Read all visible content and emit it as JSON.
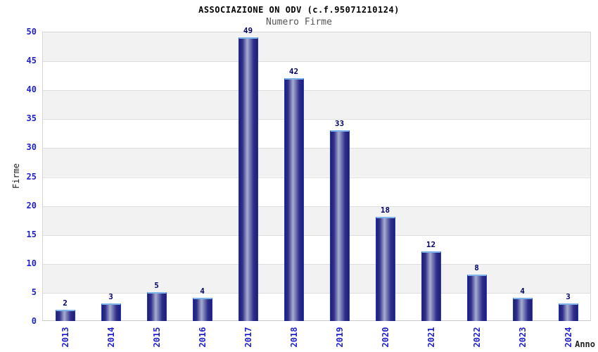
{
  "header": {
    "title": "ASSOCIAZIONE ON ODV (c.f.95071210124)",
    "subtitle": "Numero Firme"
  },
  "chart_data": {
    "type": "bar",
    "title": "ASSOCIAZIONE ON ODV (c.f.95071210124)",
    "subtitle": "Numero Firme",
    "xlabel": "Anno",
    "ylabel": "Firme",
    "categories": [
      "2013",
      "2014",
      "2015",
      "2016",
      "2017",
      "2018",
      "2019",
      "2020",
      "2021",
      "2022",
      "2023",
      "2024"
    ],
    "values": [
      2,
      3,
      5,
      4,
      49,
      42,
      33,
      18,
      12,
      8,
      4,
      3
    ],
    "ylim": [
      0,
      50
    ],
    "yticks": [
      0,
      5,
      10,
      15,
      20,
      25,
      30,
      35,
      40,
      45,
      50
    ],
    "grid": "horizontal-bands-alternating",
    "legend": "none",
    "value_labels": "above-bars",
    "colors": {
      "title": "#000000",
      "subtitle": "#555555",
      "tick_label": "#2222cc",
      "value_label": "#000066",
      "axis_title": "#222222",
      "band_gray": "#f2f2f2",
      "band_white": "#ffffff",
      "gridline": "#dedede",
      "bar_dark": "#1e1e78",
      "bar_mid": "#30308c",
      "bar_light": "#a8aed0",
      "bar_border": "#2336c8",
      "bar_top_cap": "#7db4ea"
    }
  }
}
